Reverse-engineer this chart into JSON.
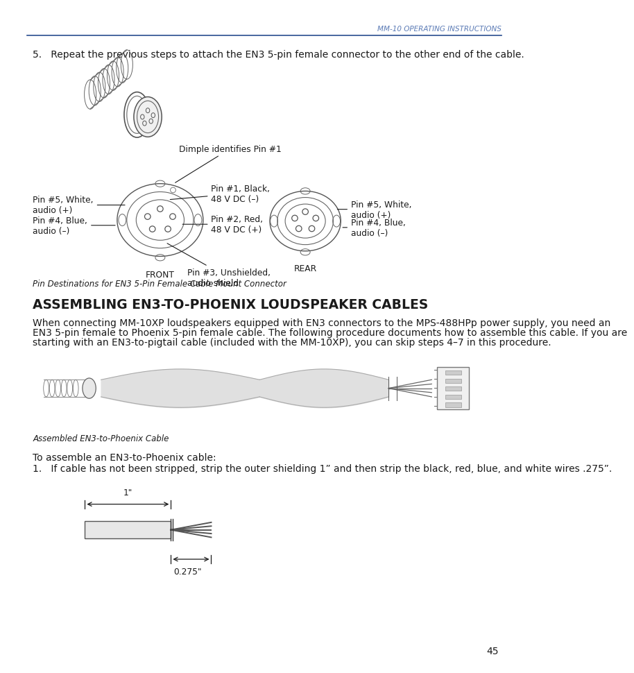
{
  "page_num": "45",
  "header_text": "MM-10 OPERATING INSTRUCTIONS",
  "header_color": "#5a7ab5",
  "line_color": "#2a4d8f",
  "bg_color": "#ffffff",
  "step5_text": "5.   Repeat the previous steps to attach the EN3 5-pin female connector to the other end of the cable.",
  "section_title": "ASSEMBLING EN3-TO-PHOENIX LOUDSPEAKER CABLES",
  "section_body_line1": "When connecting MM-10XP loudspeakers equipped with EN3 connectors to the MPS-488HPp power supply, you need an",
  "section_body_line2": "EN3 5-pin female to Phoenix 5-pin female cable. The following procedure documents how to assemble this cable. If you are",
  "section_body_line3": "starting with an EN3-to-pigtail cable (included with the MM-10XP), you can skip steps 4–7 in this procedure.",
  "cable_caption": "Assembled EN3-to-Phoenix Cable",
  "step1_intro": "To assemble an EN3-to-Phoenix cable:",
  "step1_text": "1.   If cable has not been stripped, strip the outer shielding 1” and then strip the black, red, blue, and white wires .275”.",
  "pin_diagram_caption": "Pin Destinations for EN3 5-Pin Female Cable Mount Connector",
  "dimple_label": "Dimple identifies Pin #1",
  "front_label": "FRONT",
  "rear_label": "REAR",
  "one_inch_label": "1\"",
  "point275_label": "0.275\"",
  "dark": "#1a1a1a",
  "mid_gray": "#888888",
  "light_gray": "#cccccc",
  "line_gray": "#555555"
}
